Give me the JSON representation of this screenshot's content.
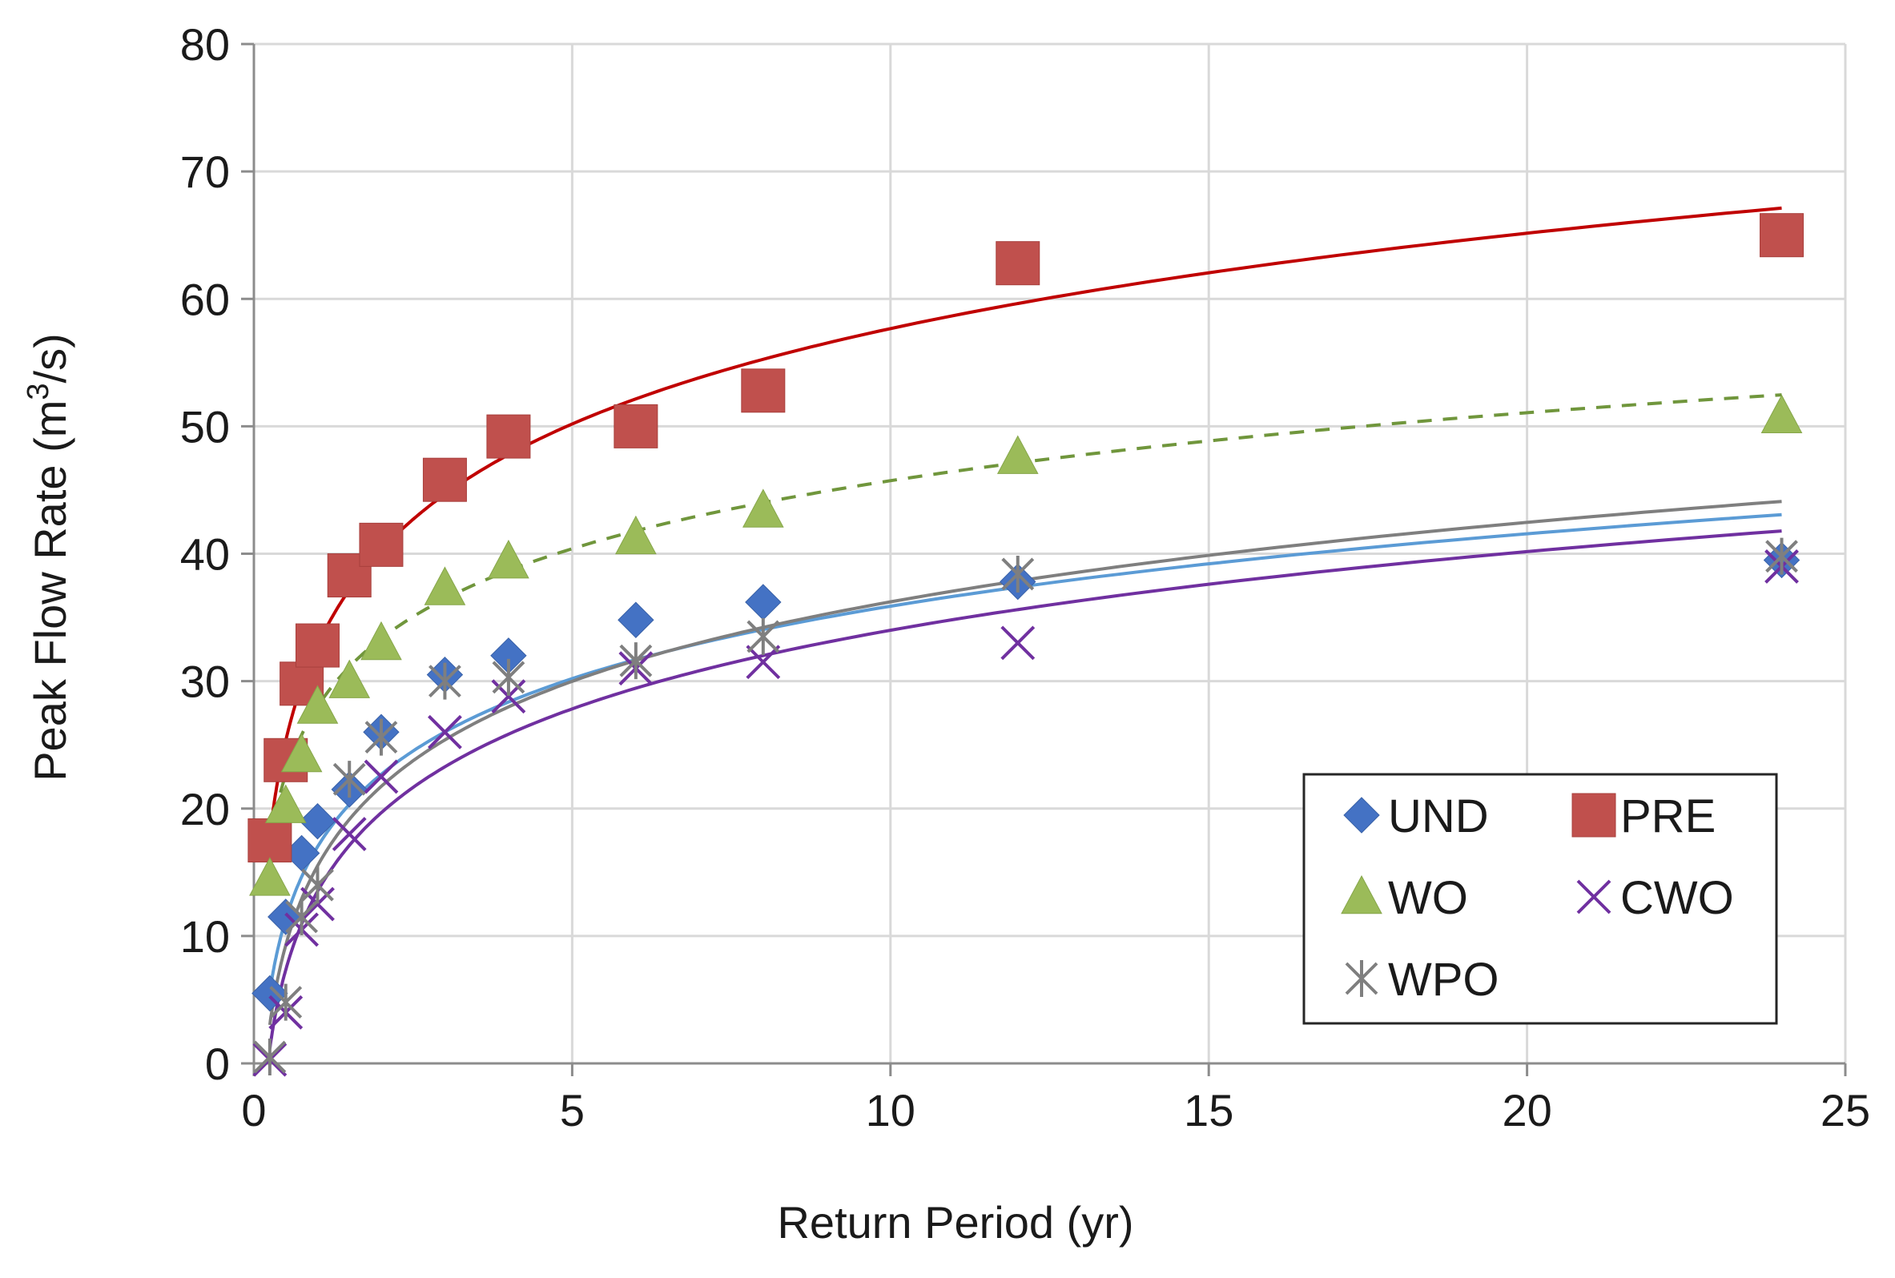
{
  "chart_data": {
    "type": "scatter",
    "title": "",
    "xlabel": "Return Period (yr)",
    "ylabel_main": "Peak Flow Rate (m",
    "ylabel_sup": "3",
    "ylabel_end": "/s)",
    "xlim": [
      0,
      25
    ],
    "ylim": [
      0,
      80
    ],
    "x_ticks": [
      0,
      5,
      10,
      15,
      20,
      25
    ],
    "y_ticks": [
      0,
      10,
      20,
      30,
      40,
      50,
      60,
      70,
      80
    ],
    "grid": true,
    "legend_position": "bottom-right",
    "x": [
      0.25,
      0.5,
      0.75,
      1,
      1.5,
      2,
      3,
      4,
      6,
      8,
      12,
      24
    ],
    "series": [
      {
        "name": "UND",
        "marker": "diamond",
        "color": "#4472C4",
        "trend_color": "#5B9BD5",
        "trend_dash": "",
        "values": [
          5.5,
          11.5,
          16.5,
          19,
          21.5,
          26,
          30.5,
          32,
          34.8,
          36.2,
          37.8,
          39.5
        ],
        "trend": {
          "a": 17.0,
          "b": 8.2
        }
      },
      {
        "name": "PRE",
        "marker": "square",
        "color": "#C0504D",
        "trend_color": "#C00000",
        "trend_dash": "",
        "values": [
          17.5,
          23.8,
          29.8,
          32.8,
          38.3,
          40.7,
          45.8,
          49.2,
          50,
          52.8,
          62.8,
          65
        ],
        "trend": {
          "a": 32.8,
          "b": 10.8
        }
      },
      {
        "name": "WO",
        "marker": "triangle",
        "color": "#9BBB59",
        "trend_color": "#70963C",
        "trend_dash": "18,14",
        "values": [
          14.5,
          20.2,
          24.2,
          28,
          30,
          33,
          37.3,
          39.4,
          41.3,
          43.4,
          47.6,
          50.8
        ],
        "trend": {
          "a": 28.0,
          "b": 7.7
        }
      },
      {
        "name": "CWO",
        "marker": "x",
        "color": "#7030A0",
        "trend_color": "#7030A0",
        "trend_dash": "",
        "values": [
          0.3,
          4,
          10.5,
          12.5,
          18,
          22.5,
          26,
          28.8,
          31,
          31.5,
          33,
          39
        ],
        "trend": {
          "a": 13.5,
          "b": 8.9
        }
      },
      {
        "name": "WPO",
        "marker": "star",
        "color": "#7F7F7F",
        "trend_color": "#7F7F7F",
        "trend_dash": "",
        "values": [
          0.5,
          4.8,
          11.5,
          14,
          22.3,
          25.6,
          30,
          30.3,
          31.6,
          33.5,
          38.4,
          39.8
        ],
        "trend": {
          "a": 15.5,
          "b": 9.0
        }
      }
    ]
  }
}
